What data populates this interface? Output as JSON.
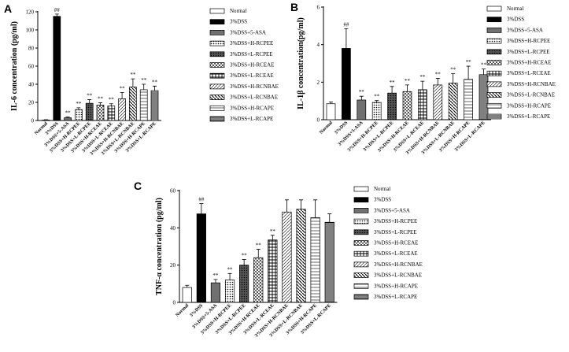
{
  "chart_data": [
    {
      "panel": "A",
      "type": "bar",
      "ylabel": "IL-6 concentration (pg/ml)",
      "ylim": [
        0,
        120
      ],
      "yticks": [
        0,
        20,
        40,
        60,
        80,
        100,
        120
      ],
      "categories": [
        "Normal",
        "3%DSS",
        "3%DSS+5-ASA",
        "3%DSS+H-RCPEE",
        "3%DSS+L-RCPEE",
        "3%DSS+H-RCEAE",
        "3%DSS+L-RCEAE",
        "3%DSS+H-RCNBAE",
        "3%DSS+L-RCNBAE",
        "3%DSS+H-RCAPE",
        "3%DSS+L-RCAPE"
      ],
      "values": [
        0.5,
        115,
        3,
        12,
        19,
        17,
        16,
        24,
        37,
        34,
        33
      ],
      "errors": [
        0.3,
        2.5,
        0.8,
        2,
        4,
        2.5,
        2.5,
        7,
        9,
        6,
        5
      ],
      "sig": [
        "",
        "##",
        "**",
        "**",
        "**",
        "**",
        "**",
        "**",
        "**",
        "**",
        "**"
      ],
      "legend": [
        "Normal",
        "3%DSS",
        "3%DSS+5-ASA",
        "3%DSS+H-RCPEE",
        "3%DSS+L-RCPEE",
        "3%DSS+H-RCEAE",
        "3%DSS+L-RCEAE",
        "3%DSS+H-RCNBAE",
        "3%DSS+L-RCNBAE",
        "3%DSS+H-RCAPE",
        "3%DSS+L-RCAPE"
      ]
    },
    {
      "panel": "B",
      "type": "bar",
      "ylabel": "IL-1β concentration(pg/ml)",
      "ylim": [
        0,
        6
      ],
      "yticks": [
        0,
        2,
        4,
        6
      ],
      "categories": [
        "Normal",
        "3%DSS",
        "3%DSS+5-ASA",
        "3%DSS+H-RCPEE",
        "3%DSS+L-RCPEE",
        "3%DSS+H-RCEAE",
        "3%DSS+L-RCEAE",
        "3%DSS+H-RCNBAE",
        "3%DSS+L-RCNBAE",
        "3%DSS+H-RCAPE",
        "3%DSS+L-RCAPE"
      ],
      "values": [
        0.85,
        3.8,
        1.05,
        0.92,
        1.42,
        1.5,
        1.6,
        1.85,
        1.95,
        2.15,
        2.4
      ],
      "errors": [
        0.1,
        1.05,
        0.2,
        0.1,
        0.35,
        0.35,
        0.45,
        0.35,
        0.5,
        0.7,
        0.3
      ],
      "sig": [
        "",
        "##",
        "**",
        "**",
        "**",
        "**",
        "**",
        "**",
        "**",
        "**",
        "**"
      ],
      "legend": [
        "Normal",
        "3%DSS",
        "3%DSS+5-ASA",
        "3%DSS+H-RCPEE",
        "3%DSS+L-RCPEE",
        "3%DSS+H-RCEAE",
        "3%DSS+L-RCEAE",
        "3%DSS+H-RCNBAE",
        "3%DSS+L-RCNBAE",
        "3%DSS+H-RCAPE",
        "3%DSS+L-RCAPE"
      ]
    },
    {
      "panel": "C",
      "type": "bar",
      "ylabel": "TNF-α concentration (pg/ml)",
      "ylim": [
        0,
        60
      ],
      "yticks": [
        0,
        20,
        40,
        60
      ],
      "categories": [
        "Normal",
        "3%DSS",
        "3%DSS+5-ASA",
        "3%DSS+H-RCPEE",
        "3%DSS+L-RCPEE",
        "3%DSS+H-RCEAE",
        "3%DSS+L-RCEAE",
        "3%DSS+H-RCNBAE",
        "3%DSS+L-RCNBAE",
        "3%DSS+H-RCAPE",
        "3%DSS+L-RCAPE"
      ],
      "values": [
        8,
        47.5,
        10.5,
        12,
        20,
        24,
        33.5,
        48.5,
        50,
        45.5,
        43
      ],
      "errors": [
        1.2,
        5.5,
        1.8,
        3.5,
        3,
        4.5,
        2.5,
        6.5,
        5,
        9.5,
        4.5
      ],
      "sig": [
        "",
        "##",
        "**",
        "**",
        "**",
        "**",
        "**",
        "",
        "",
        "",
        ""
      ],
      "legend": [
        "Normal",
        "3%DSS",
        "3%DSS+5-ASA",
        "3%DSS+H-RCPEE",
        "3%DSS+L-RCPEE",
        "3%DSS+H-RCEAE",
        "3%DSS+L-RCEAE",
        "3%DSS+H-RCNBAE",
        "3%DSS+L-RCNBAE",
        "3%DSS+H-RCAPE",
        "3%DSS+L-RCAPE"
      ]
    }
  ]
}
